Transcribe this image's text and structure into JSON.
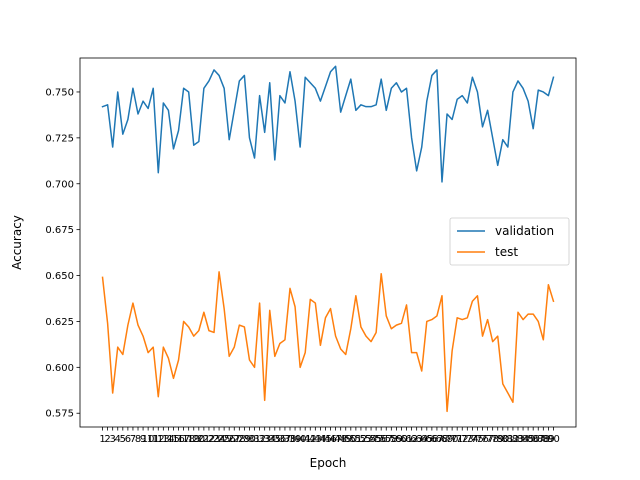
{
  "chart_data": {
    "type": "line",
    "xlabel": "Epoch",
    "ylabel": "Accuracy",
    "xlim": [
      -3.45,
      94.45
    ],
    "ylim": [
      0.5675,
      0.7685
    ],
    "yticks": [
      0.575,
      0.6,
      0.625,
      0.65,
      0.675,
      0.7,
      0.725,
      0.75
    ],
    "ytick_labels": [
      "0.575",
      "0.600",
      "0.625",
      "0.650",
      "0.675",
      "0.700",
      "0.725",
      "0.750"
    ],
    "grid": false,
    "legend_position": "center-right",
    "x": [
      1,
      2,
      3,
      4,
      5,
      6,
      7,
      8,
      9,
      10,
      11,
      12,
      13,
      14,
      15,
      16,
      17,
      18,
      19,
      20,
      21,
      22,
      23,
      24,
      25,
      26,
      27,
      28,
      29,
      30,
      31,
      32,
      33,
      34,
      35,
      36,
      37,
      38,
      39,
      40,
      41,
      42,
      43,
      44,
      45,
      46,
      47,
      48,
      49,
      50,
      51,
      52,
      53,
      54,
      55,
      56,
      57,
      58,
      59,
      60,
      61,
      62,
      63,
      64,
      65,
      66,
      67,
      68,
      69,
      70,
      71,
      72,
      73,
      74,
      75,
      76,
      77,
      78,
      79,
      80,
      81,
      82,
      83,
      84,
      85,
      86,
      87,
      88,
      89,
      90
    ],
    "x_tick_labels": [
      "1",
      "2",
      "3",
      "4",
      "5",
      "6",
      "7",
      "8",
      "9",
      "10",
      "11",
      "12",
      "13",
      "14",
      "15",
      "16",
      "17",
      "18",
      "19",
      "20",
      "21",
      "22",
      "23",
      "24",
      "25",
      "26",
      "27",
      "28",
      "29",
      "30",
      "31",
      "32",
      "33",
      "34",
      "35",
      "36",
      "37",
      "38",
      "39",
      "40",
      "41",
      "42",
      "43",
      "44",
      "45",
      "46",
      "47",
      "48",
      "49",
      "50",
      "51",
      "52",
      "53",
      "54",
      "55",
      "56",
      "57",
      "58",
      "59",
      "60",
      "61",
      "62",
      "63",
      "64",
      "65",
      "66",
      "67",
      "68",
      "69",
      "70",
      "71",
      "72",
      "73",
      "74",
      "75",
      "76",
      "77",
      "78",
      "79",
      "80",
      "81",
      "82",
      "83",
      "84",
      "85",
      "86",
      "87",
      "88",
      "89",
      "90"
    ],
    "series": [
      {
        "name": "validation",
        "color": "#1f77b4",
        "values": [
          0.742,
          0.743,
          0.72,
          0.75,
          0.727,
          0.735,
          0.752,
          0.738,
          0.745,
          0.741,
          0.752,
          0.706,
          0.744,
          0.74,
          0.719,
          0.729,
          0.752,
          0.75,
          0.721,
          0.723,
          0.752,
          0.756,
          0.762,
          0.759,
          0.752,
          0.724,
          0.74,
          0.756,
          0.759,
          0.725,
          0.714,
          0.748,
          0.728,
          0.755,
          0.713,
          0.748,
          0.744,
          0.761,
          0.745,
          0.72,
          0.758,
          0.755,
          0.752,
          0.745,
          0.753,
          0.761,
          0.764,
          0.739,
          0.748,
          0.757,
          0.74,
          0.743,
          0.742,
          0.742,
          0.743,
          0.757,
          0.74,
          0.752,
          0.755,
          0.75,
          0.752,
          0.725,
          0.707,
          0.72,
          0.745,
          0.759,
          0.762,
          0.701,
          0.738,
          0.735,
          0.746,
          0.748,
          0.744,
          0.758,
          0.75,
          0.731,
          0.74,
          0.725,
          0.71,
          0.724,
          0.72,
          0.75,
          0.756,
          0.752,
          0.745,
          0.73,
          0.751,
          0.75,
          0.748,
          0.758
        ]
      },
      {
        "name": "test",
        "color": "#ff7f0e",
        "values": [
          0.649,
          0.624,
          0.586,
          0.611,
          0.607,
          0.623,
          0.635,
          0.623,
          0.617,
          0.608,
          0.611,
          0.584,
          0.611,
          0.605,
          0.594,
          0.604,
          0.625,
          0.622,
          0.617,
          0.62,
          0.63,
          0.62,
          0.619,
          0.652,
          0.632,
          0.606,
          0.611,
          0.623,
          0.622,
          0.604,
          0.6,
          0.635,
          0.582,
          0.631,
          0.606,
          0.613,
          0.615,
          0.643,
          0.633,
          0.6,
          0.608,
          0.637,
          0.635,
          0.612,
          0.627,
          0.632,
          0.617,
          0.61,
          0.607,
          0.621,
          0.639,
          0.622,
          0.617,
          0.614,
          0.619,
          0.651,
          0.628,
          0.621,
          0.623,
          0.624,
          0.634,
          0.608,
          0.608,
          0.598,
          0.625,
          0.626,
          0.628,
          0.639,
          0.576,
          0.609,
          0.627,
          0.626,
          0.627,
          0.636,
          0.639,
          0.617,
          0.626,
          0.614,
          0.617,
          0.591,
          0.586,
          0.581,
          0.63,
          0.626,
          0.629,
          0.629,
          0.625,
          0.615,
          0.645,
          0.636
        ]
      }
    ]
  }
}
